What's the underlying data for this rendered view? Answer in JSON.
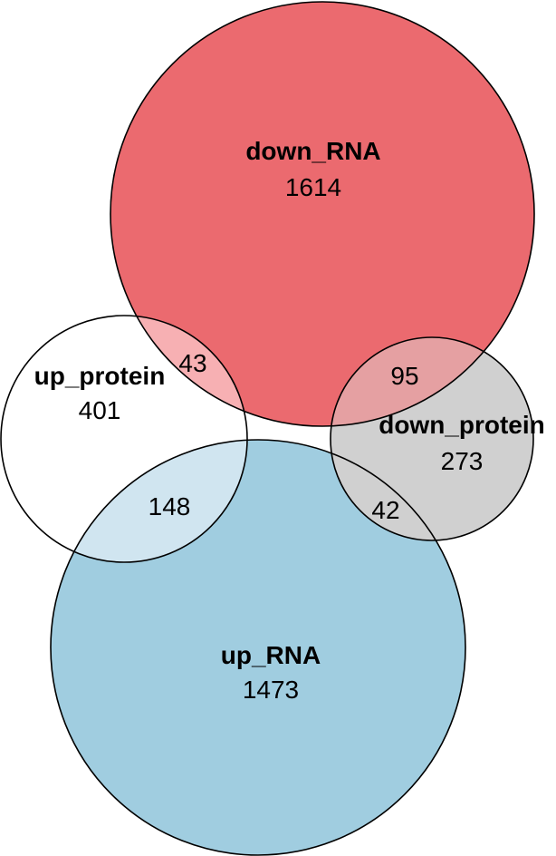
{
  "sets": {
    "down_rna": {
      "name": "down_RNA",
      "count": "1614",
      "color": "#eb6a6f"
    },
    "up_rna": {
      "name": "up_RNA",
      "count": "1473",
      "color": "#a0cde0"
    },
    "up_protein": {
      "name": "up_protein",
      "count": "401",
      "color": "#ffffff"
    },
    "down_protein": {
      "name": "down_protein",
      "count": "273",
      "color": "#d0d0d0"
    }
  },
  "overlaps": {
    "up_protein_down_rna": "43",
    "down_protein_down_rna": "95",
    "up_protein_up_rna": "148",
    "down_protein_up_rna": "42"
  },
  "overlap_colors": {
    "up_protein_down_rna": "#f7b0b3",
    "down_protein_down_rna": "#e5a0a2",
    "up_protein_up_rna": "#d0e5f0"
  }
}
